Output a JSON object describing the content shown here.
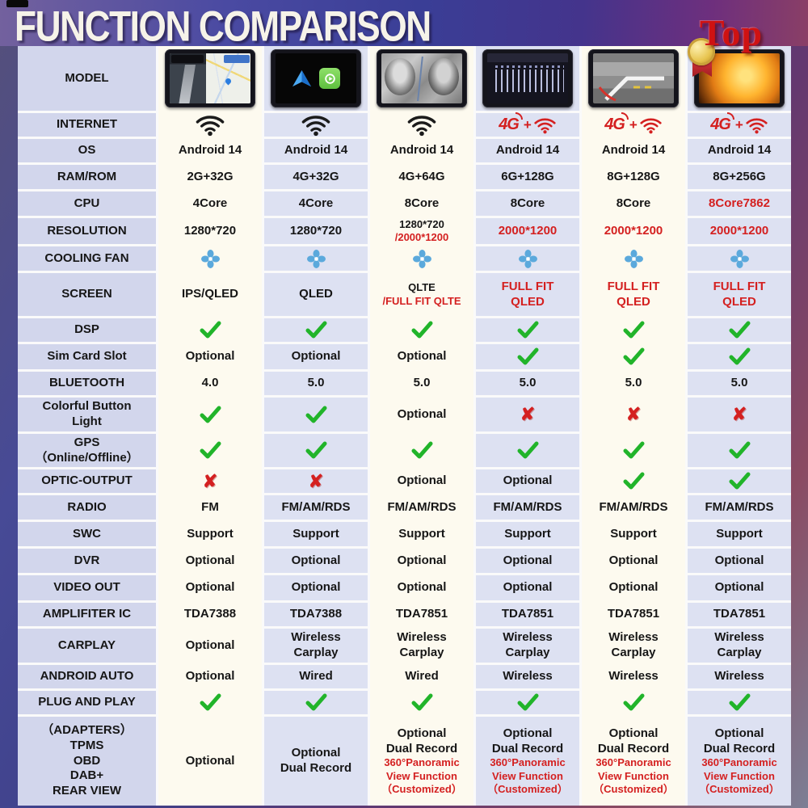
{
  "page": {
    "title_text": "FUNCTION COMPARISON",
    "top_badge": "Top"
  },
  "palette": {
    "ink": "#1b1b1b",
    "red": "#d42020",
    "check_green": "#21b42a",
    "fan_blue": "#5ba9dc",
    "label_bg": "#d2d6ec",
    "col_cream": "#fdfaef",
    "col_lavender": "#dde1f2"
  },
  "table": {
    "rows": [
      {
        "key": "model",
        "label": [
          "MODEL"
        ],
        "cells": [
          {
            "t": "img",
            "v": "navigation-map-screen"
          },
          {
            "t": "img",
            "v": "android-auto-carplay-screen"
          },
          {
            "t": "img",
            "v": "surround-view-camera-screen"
          },
          {
            "t": "img",
            "v": "equalizer-screen"
          },
          {
            "t": "img",
            "v": "reverse-camera-screen"
          },
          {
            "t": "img",
            "v": "pikachu-movie-screen",
            "medal": true
          }
        ]
      },
      {
        "key": "internet",
        "label": [
          "INTERNET"
        ],
        "cells": [
          {
            "t": "wifi"
          },
          {
            "t": "wifi"
          },
          {
            "t": "wifi"
          },
          {
            "t": "wifi4g",
            "v": "4G"
          },
          {
            "t": "wifi4g",
            "v": "4G"
          },
          {
            "t": "wifi4g",
            "v": "4G"
          }
        ]
      },
      {
        "key": "os",
        "label": [
          "OS"
        ],
        "cells": [
          {
            "t": "x",
            "v": "Android 14"
          },
          {
            "t": "x",
            "v": "Android 14"
          },
          {
            "t": "x",
            "v": "Android 14"
          },
          {
            "t": "x",
            "v": "Android 14"
          },
          {
            "t": "x",
            "v": "Android 14"
          },
          {
            "t": "x",
            "v": "Android 14"
          }
        ]
      },
      {
        "key": "ram-rom",
        "label": [
          "RAM/ROM"
        ],
        "cells": [
          {
            "t": "x",
            "v": "2G+32G"
          },
          {
            "t": "x",
            "v": "4G+32G"
          },
          {
            "t": "x",
            "v": "4G+64G"
          },
          {
            "t": "x",
            "v": "6G+128G"
          },
          {
            "t": "x",
            "v": "8G+128G"
          },
          {
            "t": "x",
            "v": "8G+256G"
          }
        ]
      },
      {
        "key": "cpu",
        "label": [
          "CPU"
        ],
        "cells": [
          {
            "t": "x",
            "v": "4Core"
          },
          {
            "t": "x",
            "v": "4Core"
          },
          {
            "t": "x",
            "v": "8Core"
          },
          {
            "t": "x",
            "v": "8Core"
          },
          {
            "t": "x",
            "v": "8Core"
          },
          {
            "t": "x",
            "v": "8Core7862",
            "red": true
          }
        ]
      },
      {
        "key": "resolution",
        "label": [
          "RESOLUTION"
        ],
        "cells": [
          {
            "t": "x",
            "v": "1280*720"
          },
          {
            "t": "x",
            "v": "1280*720"
          },
          {
            "t": "lines",
            "v": [
              {
                "v": "1280*720",
                "sz": 13
              },
              {
                "v": "/2000*1200",
                "red": true,
                "sz": 13
              }
            ]
          },
          {
            "t": "x",
            "v": "2000*1200",
            "red": true
          },
          {
            "t": "x",
            "v": "2000*1200",
            "red": true
          },
          {
            "t": "x",
            "v": "2000*1200",
            "red": true
          }
        ]
      },
      {
        "key": "cooling-fan",
        "label": [
          "COOLING FAN"
        ],
        "cells": [
          {
            "t": "fan"
          },
          {
            "t": "fan"
          },
          {
            "t": "fan"
          },
          {
            "t": "fan"
          },
          {
            "t": "fan"
          },
          {
            "t": "fan"
          }
        ]
      },
      {
        "key": "screen",
        "label": [
          "SCREEN"
        ],
        "cells": [
          {
            "t": "x",
            "v": "IPS/QLED"
          },
          {
            "t": "x",
            "v": "QLED"
          },
          {
            "t": "lines",
            "v": [
              {
                "v": "QLTE",
                "sz": 13
              },
              {
                "v": "/FULL FIT QLTE",
                "red": true,
                "sz": 13
              }
            ]
          },
          {
            "t": "lines",
            "v": [
              {
                "v": "FULL FIT",
                "red": true
              },
              {
                "v": "QLED",
                "red": true
              }
            ]
          },
          {
            "t": "lines",
            "v": [
              {
                "v": "FULL FIT",
                "red": true
              },
              {
                "v": "QLED",
                "red": true
              }
            ]
          },
          {
            "t": "lines",
            "v": [
              {
                "v": "FULL FIT",
                "red": true
              },
              {
                "v": "QLED",
                "red": true
              }
            ]
          }
        ]
      },
      {
        "key": "dsp",
        "label": [
          "DSP"
        ],
        "cells": [
          {
            "t": "check"
          },
          {
            "t": "check"
          },
          {
            "t": "check"
          },
          {
            "t": "check"
          },
          {
            "t": "check"
          },
          {
            "t": "check"
          }
        ]
      },
      {
        "key": "sim-card-slot",
        "label": [
          "Sim Card Slot"
        ],
        "cells": [
          {
            "t": "x",
            "v": "Optional"
          },
          {
            "t": "x",
            "v": "Optional"
          },
          {
            "t": "x",
            "v": "Optional"
          },
          {
            "t": "check"
          },
          {
            "t": "check"
          },
          {
            "t": "check"
          }
        ]
      },
      {
        "key": "bluetooth",
        "label": [
          "BLUETOOTH"
        ],
        "cells": [
          {
            "t": "x",
            "v": "4.0"
          },
          {
            "t": "x",
            "v": "5.0"
          },
          {
            "t": "x",
            "v": "5.0"
          },
          {
            "t": "x",
            "v": "5.0"
          },
          {
            "t": "x",
            "v": "5.0"
          },
          {
            "t": "x",
            "v": "5.0"
          }
        ]
      },
      {
        "key": "colorful-button-light",
        "label": [
          "Colorful Button",
          "Light"
        ],
        "cells": [
          {
            "t": "check"
          },
          {
            "t": "check"
          },
          {
            "t": "x",
            "v": "Optional"
          },
          {
            "t": "cross"
          },
          {
            "t": "cross"
          },
          {
            "t": "cross"
          }
        ]
      },
      {
        "key": "gps",
        "label": [
          "GPS",
          "（Online/Offline）"
        ],
        "cells": [
          {
            "t": "check"
          },
          {
            "t": "check"
          },
          {
            "t": "check"
          },
          {
            "t": "check"
          },
          {
            "t": "check"
          },
          {
            "t": "check"
          }
        ]
      },
      {
        "key": "optic-output",
        "label": [
          "OPTIC-OUTPUT"
        ],
        "cells": [
          {
            "t": "cross"
          },
          {
            "t": "cross"
          },
          {
            "t": "x",
            "v": "Optional"
          },
          {
            "t": "x",
            "v": "Optional"
          },
          {
            "t": "check"
          },
          {
            "t": "check"
          }
        ]
      },
      {
        "key": "radio",
        "label": [
          "RADIO"
        ],
        "cells": [
          {
            "t": "x",
            "v": "FM"
          },
          {
            "t": "x",
            "v": "FM/AM/RDS"
          },
          {
            "t": "x",
            "v": "FM/AM/RDS"
          },
          {
            "t": "x",
            "v": "FM/AM/RDS"
          },
          {
            "t": "x",
            "v": "FM/AM/RDS"
          },
          {
            "t": "x",
            "v": "FM/AM/RDS"
          }
        ]
      },
      {
        "key": "swc",
        "label": [
          "SWC"
        ],
        "cells": [
          {
            "t": "x",
            "v": "Support"
          },
          {
            "t": "x",
            "v": "Support"
          },
          {
            "t": "x",
            "v": "Support"
          },
          {
            "t": "x",
            "v": "Support"
          },
          {
            "t": "x",
            "v": "Support"
          },
          {
            "t": "x",
            "v": "Support"
          }
        ]
      },
      {
        "key": "dvr",
        "label": [
          "DVR"
        ],
        "cells": [
          {
            "t": "x",
            "v": "Optional"
          },
          {
            "t": "x",
            "v": "Optional"
          },
          {
            "t": "x",
            "v": "Optional"
          },
          {
            "t": "x",
            "v": "Optional"
          },
          {
            "t": "x",
            "v": "Optional"
          },
          {
            "t": "x",
            "v": "Optional"
          }
        ]
      },
      {
        "key": "video-out",
        "label": [
          "VIDEO OUT"
        ],
        "cells": [
          {
            "t": "x",
            "v": "Optional"
          },
          {
            "t": "x",
            "v": "Optional"
          },
          {
            "t": "x",
            "v": "Optional"
          },
          {
            "t": "x",
            "v": "Optional"
          },
          {
            "t": "x",
            "v": "Optional"
          },
          {
            "t": "x",
            "v": "Optional"
          }
        ]
      },
      {
        "key": "amplifiter-ic",
        "label": [
          "AMPLIFITER IC"
        ],
        "cells": [
          {
            "t": "x",
            "v": "TDA7388"
          },
          {
            "t": "x",
            "v": "TDA7388"
          },
          {
            "t": "x",
            "v": "TDA7851"
          },
          {
            "t": "x",
            "v": "TDA7851"
          },
          {
            "t": "x",
            "v": "TDA7851"
          },
          {
            "t": "x",
            "v": "TDA7851"
          }
        ]
      },
      {
        "key": "carplay",
        "label": [
          "CARPLAY"
        ],
        "cells": [
          {
            "t": "x",
            "v": "Optional"
          },
          {
            "t": "lines",
            "v": [
              {
                "v": "Wireless"
              },
              {
                "v": "Carplay"
              }
            ]
          },
          {
            "t": "lines",
            "v": [
              {
                "v": "Wireless"
              },
              {
                "v": "Carplay"
              }
            ]
          },
          {
            "t": "lines",
            "v": [
              {
                "v": "Wireless"
              },
              {
                "v": "Carplay"
              }
            ]
          },
          {
            "t": "lines",
            "v": [
              {
                "v": "Wireless"
              },
              {
                "v": "Carplay"
              }
            ]
          },
          {
            "t": "lines",
            "v": [
              {
                "v": "Wireless"
              },
              {
                "v": "Carplay"
              }
            ]
          }
        ]
      },
      {
        "key": "android-auto",
        "label": [
          "ANDROID AUTO"
        ],
        "cells": [
          {
            "t": "x",
            "v": "Optional"
          },
          {
            "t": "x",
            "v": "Wired"
          },
          {
            "t": "x",
            "v": "Wired"
          },
          {
            "t": "x",
            "v": "Wireless"
          },
          {
            "t": "x",
            "v": "Wireless"
          },
          {
            "t": "x",
            "v": "Wireless"
          }
        ]
      },
      {
        "key": "plug-and-play",
        "label": [
          "PLUG AND PLAY"
        ],
        "cells": [
          {
            "t": "check"
          },
          {
            "t": "check"
          },
          {
            "t": "check"
          },
          {
            "t": "check"
          },
          {
            "t": "check"
          },
          {
            "t": "check"
          }
        ]
      },
      {
        "key": "adapters",
        "label": [
          "（ADAPTERS）",
          "TPMS",
          "OBD",
          "DAB+",
          "REAR VIEW"
        ],
        "cells": [
          {
            "t": "x",
            "v": "Optional"
          },
          {
            "t": "lines",
            "v": [
              {
                "v": "Optional"
              },
              {
                "v": "Dual Record"
              }
            ]
          },
          {
            "t": "lines",
            "v": [
              {
                "v": "Optional"
              },
              {
                "v": "Dual Record"
              },
              {
                "v": "360°Panoramic",
                "red": true,
                "sz": 13
              },
              {
                "v": "View Function",
                "red": true,
                "sz": 13
              },
              {
                "v": "（Customized）",
                "red": true,
                "sz": 13
              }
            ]
          },
          {
            "t": "lines",
            "v": [
              {
                "v": "Optional"
              },
              {
                "v": "Dual Record"
              },
              {
                "v": "360°Panoramic",
                "red": true,
                "sz": 13
              },
              {
                "v": "View Function",
                "red": true,
                "sz": 13
              },
              {
                "v": "（Customized）",
                "red": true,
                "sz": 13
              }
            ]
          },
          {
            "t": "lines",
            "v": [
              {
                "v": "Optional"
              },
              {
                "v": "Dual Record"
              },
              {
                "v": "360°Panoramic",
                "red": true,
                "sz": 13
              },
              {
                "v": "View Function",
                "red": true,
                "sz": 13
              },
              {
                "v": "（Customized）",
                "red": true,
                "sz": 13
              }
            ]
          },
          {
            "t": "lines",
            "v": [
              {
                "v": "Optional"
              },
              {
                "v": "Dual Record"
              },
              {
                "v": "360°Panoramic",
                "red": true,
                "sz": 13
              },
              {
                "v": "View Function",
                "red": true,
                "sz": 13
              },
              {
                "v": "（Customized）",
                "red": true,
                "sz": 13
              }
            ]
          }
        ]
      }
    ]
  }
}
